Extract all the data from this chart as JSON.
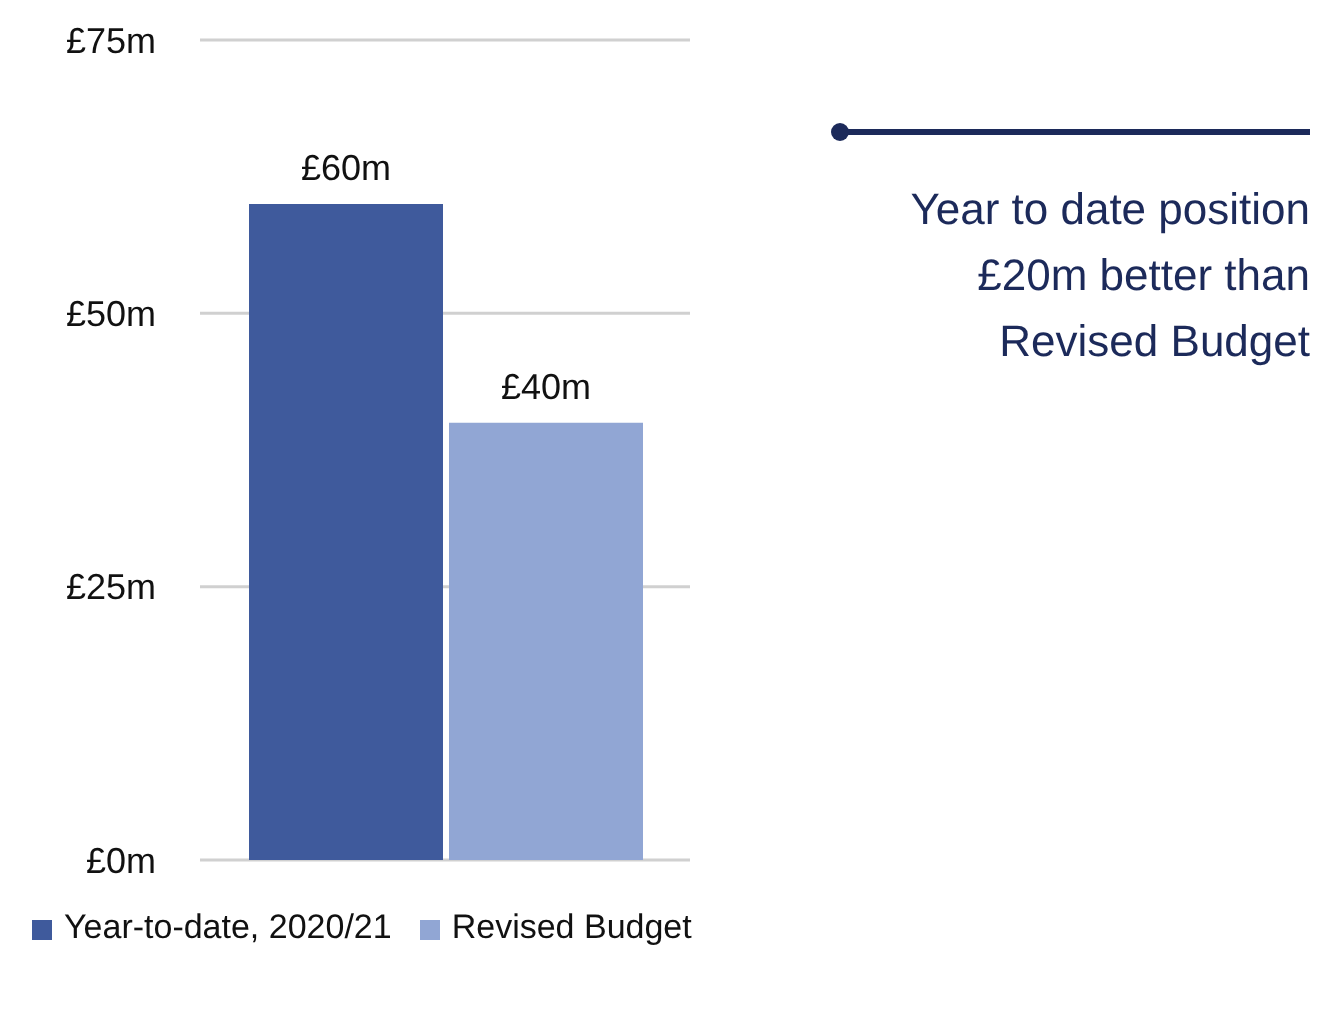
{
  "chart_data": {
    "type": "bar",
    "categories": [
      null
    ],
    "series": [
      {
        "name": "Year-to-date, 2020/21",
        "color": "#3f5a9c",
        "values": [
          60
        ],
        "value_labels": [
          "£60m"
        ]
      },
      {
        "name": "Revised Budget",
        "color": "#91a6d4",
        "values": [
          40
        ],
        "value_labels": [
          "£40m"
        ]
      }
    ],
    "ylim": [
      0,
      75
    ],
    "yticks": [
      {
        "value": 0,
        "label": "£0m"
      },
      {
        "value": 25,
        "label": "£25m"
      },
      {
        "value": 50,
        "label": "£50m"
      },
      {
        "value": 75,
        "label": "£75m"
      }
    ],
    "grid": "y",
    "legend": "bottom",
    "tick_labels": "y",
    "annotations": [
      "Year to date position £20m better than Revised Budget"
    ]
  }
}
